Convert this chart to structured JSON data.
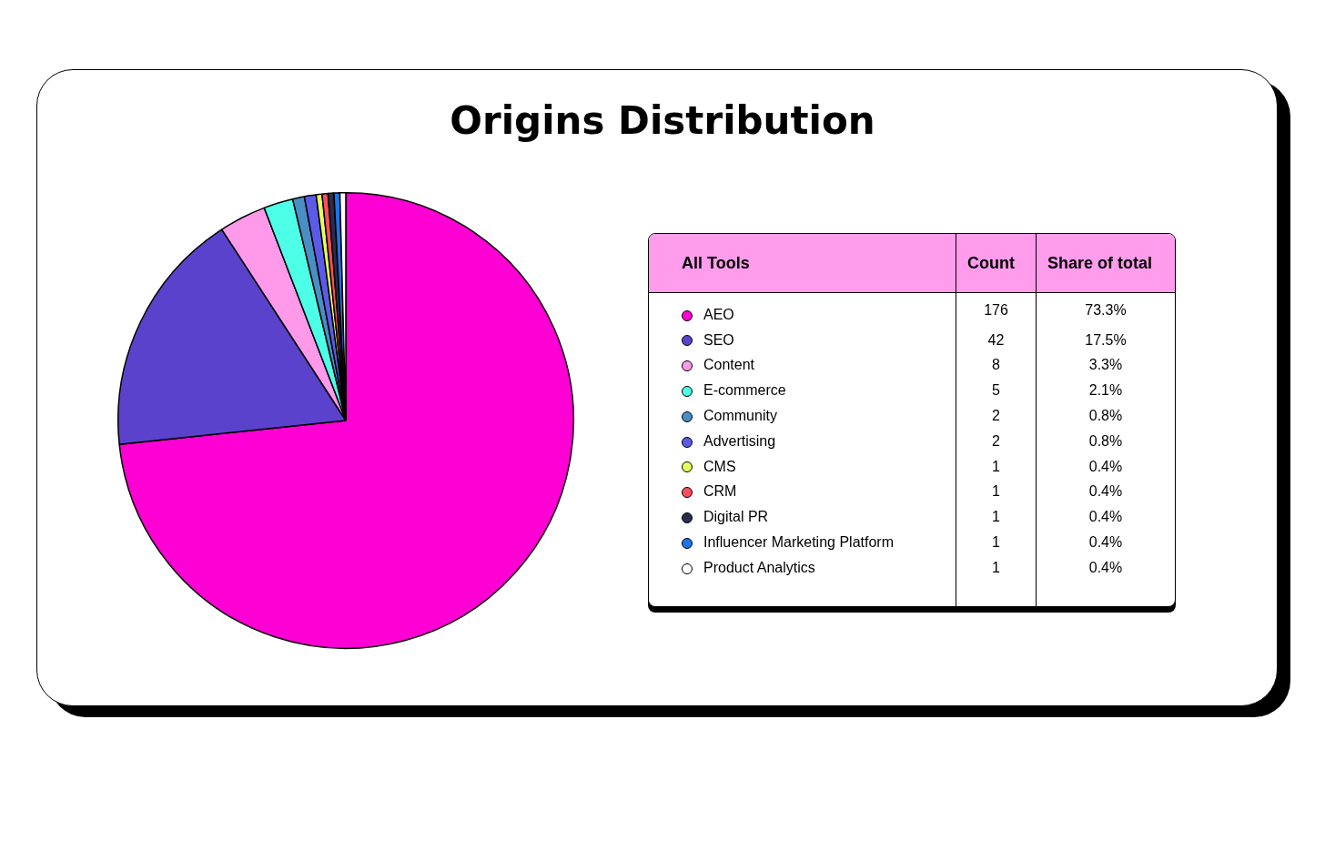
{
  "chart_data": {
    "type": "pie",
    "title": "Origins Distribution",
    "legend_title": "All Tools",
    "annotations": [
      "Count",
      "Share of total",
      "73.3%",
      "17.5%",
      "3.3%",
      "2.1%",
      "0.8%",
      "0.8%",
      "0.4%",
      "0.4%",
      "0.4%",
      "0.4%",
      "0.4%"
    ],
    "categories": [
      "AEO",
      "SEO",
      "Content",
      "E-commerce",
      "Community",
      "Advertising",
      "CMS",
      "CRM",
      "Digital PR",
      "Influencer Marketing Platform",
      "Product Analytics"
    ],
    "values": [
      176,
      42,
      8,
      5,
      2,
      2,
      1,
      1,
      1,
      1,
      1
    ],
    "colors": [
      "#ff00d4",
      "#5a42cc",
      "#ff99ea",
      "#4dffe6",
      "#4a8fc4",
      "#5b5be8",
      "#e6ff5c",
      "#ff4d5e",
      "#2b2b4d",
      "#1a75ea",
      "#ffffff"
    ],
    "data_labels": true,
    "legend": "right"
  }
}
